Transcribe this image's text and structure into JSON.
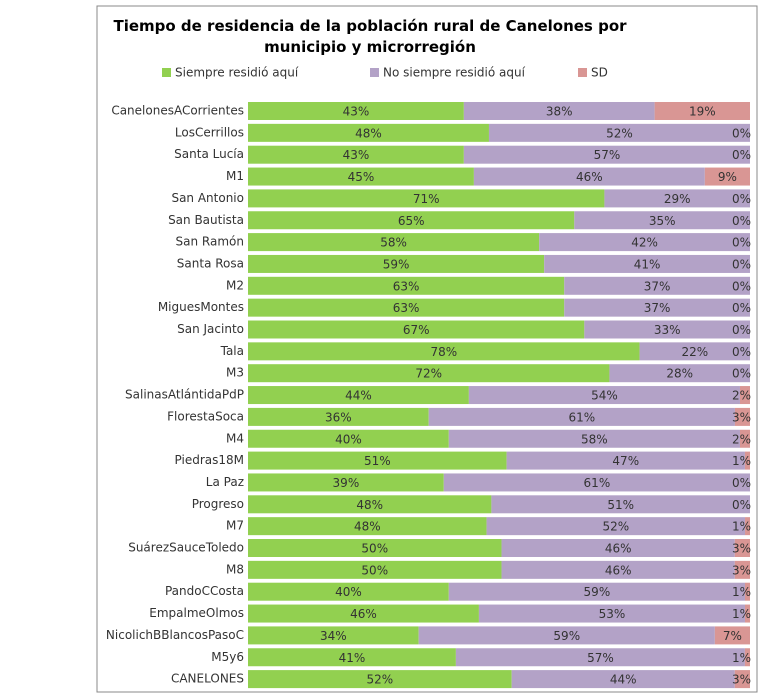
{
  "chart_data": {
    "type": "stacked_bar_100",
    "title": "Tiempo de residencia de la población rural de Canelones por municipio y microrregión",
    "categories": [
      "CanelonesACorrientes",
      "LosCerrillos",
      "Santa Lucía",
      "M1",
      "San Antonio",
      "San Bautista",
      "San Ramón",
      "Santa Rosa",
      "M2",
      "MiguesMontes",
      "San Jacinto",
      "Tala",
      "M3",
      "SalinasAtlántidaPdP",
      "FlorestaSoca",
      "M4",
      "Piedras18M",
      "La Paz",
      "Progreso",
      "M7",
      "SuárezSauceToledo",
      "M8",
      "PandoCCosta",
      "EmpalmeOlmos",
      "NicolichBBlancosPasoC",
      "M5y6",
      "CANELONES"
    ],
    "series": [
      {
        "name": "Siempre residió aquí",
        "color": "#92d050",
        "values": [
          43,
          48,
          43,
          45,
          71,
          65,
          58,
          59,
          63,
          63,
          67,
          78,
          72,
          44,
          36,
          40,
          51,
          39,
          48,
          48,
          50,
          50,
          40,
          46,
          34,
          41,
          52
        ],
        "value_labels": [
          "43%",
          "48%",
          "43%",
          "45%",
          "71%",
          "65%",
          "58%",
          "59%",
          "63%",
          "63%",
          "67%",
          "78%",
          "72%",
          "44%",
          "36%",
          "40%",
          "51%",
          "39%",
          "48%",
          "48%",
          "50%",
          "50%",
          "40%",
          "46%",
          "34%",
          "41%",
          "52%"
        ]
      },
      {
        "name": "No siempre residió aquí",
        "color": "#b3a2c7",
        "values": [
          38,
          52,
          57,
          46,
          29,
          35,
          42,
          41,
          37,
          37,
          33,
          22,
          28,
          54,
          61,
          58,
          47,
          61,
          51,
          52,
          46,
          46,
          59,
          53,
          59,
          57,
          44
        ],
        "value_labels": [
          "38%",
          "52%",
          "57%",
          "46%",
          "29%",
          "35%",
          "42%",
          "41%",
          "37%",
          "37%",
          "33%",
          "22%",
          "28%",
          "54%",
          "61%",
          "58%",
          "47%",
          "61%",
          "51%",
          "52%",
          "46%",
          "46%",
          "59%",
          "53%",
          "59%",
          "57%",
          "44%"
        ]
      },
      {
        "name": "SD",
        "color": "#d99694",
        "values": [
          19,
          0,
          0,
          9,
          0,
          0,
          0,
          0,
          0,
          0,
          0,
          0,
          0,
          2,
          3,
          2,
          1,
          0,
          0,
          1,
          3,
          3,
          1,
          1,
          7,
          1,
          3
        ],
        "value_labels": [
          "19%",
          "0%",
          "0%",
          "9%",
          "0%",
          "0%",
          "0%",
          "0%",
          "0%",
          "0%",
          "0%",
          "0%",
          "0%",
          "2%",
          "3%",
          "2%",
          "1%",
          "0%",
          "0%",
          "1%",
          "3%",
          "3%",
          "1%",
          "1%",
          "7%",
          "1%",
          "3%"
        ]
      }
    ],
    "legend": "top"
  }
}
